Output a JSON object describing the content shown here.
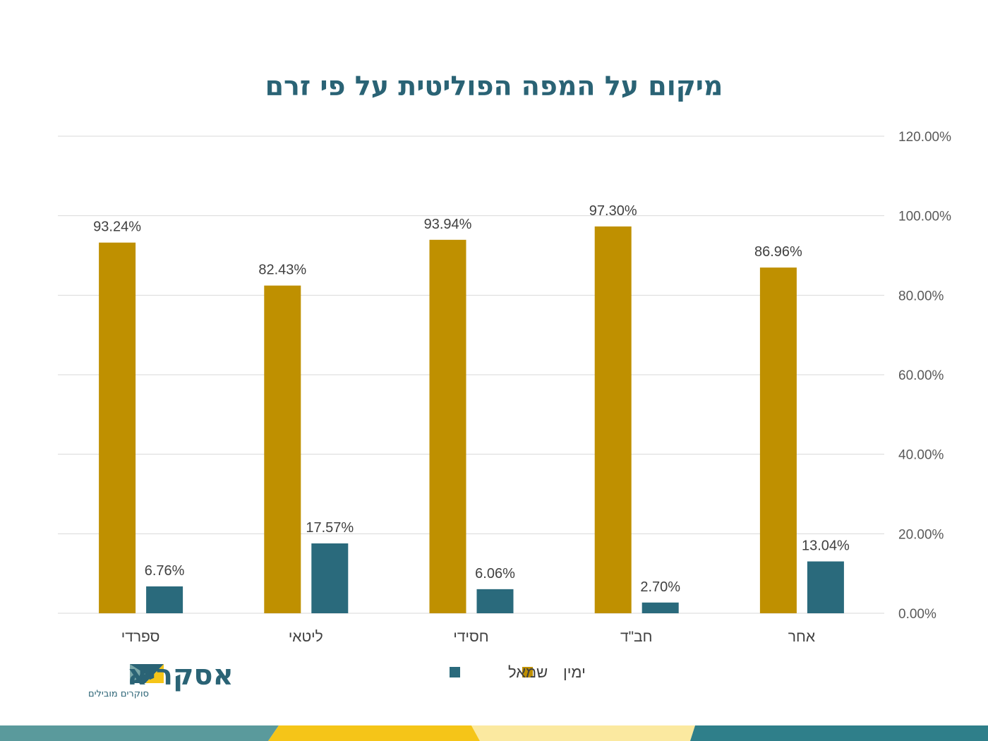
{
  "colors": {
    "title": "#2a6375",
    "series_right": "#bf9000",
    "series_left": "#2a6a7c",
    "grid": "#d9d9d9",
    "band_teal": "#5a9a9c",
    "band_yellow": "#f5c518",
    "band_cream": "#fbe9a0",
    "band_dark_teal": "#2f7f8a"
  },
  "logo": {
    "name": "אסקריא",
    "tagline": "סוקרים מובילים"
  },
  "chart_data": {
    "type": "bar",
    "title": "מיקום על המפה הפוליטית על פי זרם",
    "categories": [
      "ספרדי",
      "ליטאי",
      "חסידי",
      "חב\"ד",
      "אחר"
    ],
    "series": [
      {
        "name": "ימין",
        "values": [
          93.24,
          82.43,
          93.94,
          97.3,
          86.96
        ],
        "labels": [
          "93.24%",
          "82.43%",
          "93.94%",
          "97.30%",
          "86.96%"
        ],
        "color": "#bf9000"
      },
      {
        "name": "שמאל",
        "values": [
          6.76,
          17.57,
          6.06,
          2.7,
          13.04
        ],
        "labels": [
          "6.76%",
          "17.57%",
          "6.06%",
          "2.70%",
          "13.04%"
        ],
        "color": "#2a6a7c"
      }
    ],
    "y_ticks": [
      "0.00%",
      "20.00%",
      "40.00%",
      "60.00%",
      "80.00%",
      "100.00%",
      "120.00%"
    ],
    "ylim": [
      0,
      120
    ],
    "y_axis_side": "right",
    "grid": true,
    "legend_position": "bottom",
    "xlabel": "",
    "ylabel": ""
  }
}
